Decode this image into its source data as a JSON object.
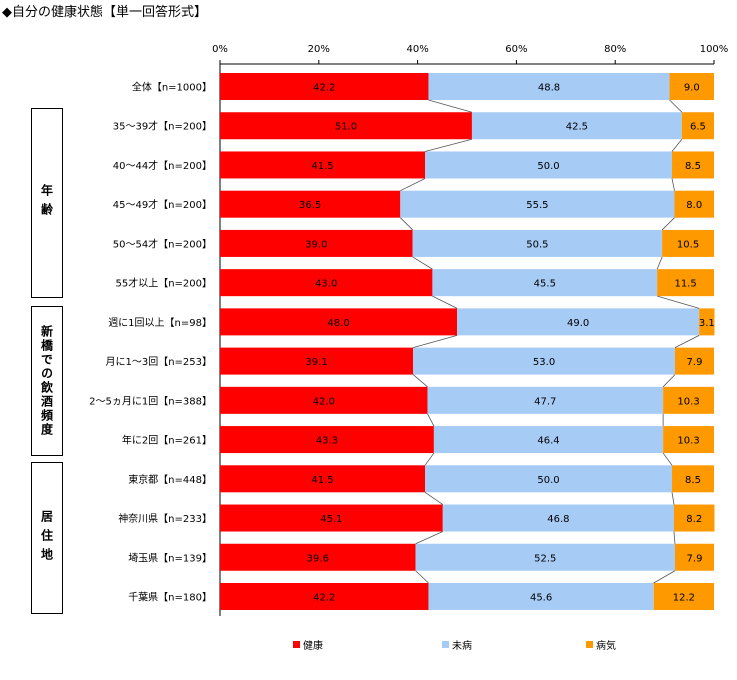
{
  "title": "◆自分の健康状態【単一回答形式】",
  "colors": {
    "health": "#ff0000",
    "mibyo": "#a6cbf5",
    "sick": "#ff9900",
    "axis": "#000000"
  },
  "groups": [
    {
      "label": "年齢",
      "rows": [
        1,
        5
      ]
    },
    {
      "label": "新橋での飲酒頻度",
      "rows": [
        6,
        9
      ]
    },
    {
      "label": "居住地",
      "rows": [
        10,
        13
      ]
    }
  ],
  "chart_data": {
    "type": "bar",
    "orientation": "horizontal-stacked-100",
    "xlim": [
      0,
      100
    ],
    "xticks": [
      "0%",
      "20%",
      "40%",
      "60%",
      "80%",
      "100%"
    ],
    "categories": [
      "全体【n=1000】",
      "35～39才【n=200】",
      "40～44才【n=200】",
      "45～49才【n=200】",
      "50～54才【n=200】",
      "55才以上【n=200】",
      "週に1回以上【n=98】",
      "月に1～3回【n=253】",
      "2～5ヵ月に1回【n=388】",
      "年に2回【n=261】",
      "東京都【n=448】",
      "神奈川県【n=233】",
      "埼玉県【n=139】",
      "千葉県【n=180】"
    ],
    "series": [
      {
        "name": "健康",
        "values": [
          42.2,
          51.0,
          41.5,
          36.5,
          39.0,
          43.0,
          48.0,
          39.1,
          42.0,
          43.3,
          41.5,
          45.1,
          39.6,
          42.2
        ]
      },
      {
        "name": "未病",
        "values": [
          48.8,
          42.5,
          50.0,
          55.5,
          50.5,
          45.5,
          49.0,
          53.0,
          47.7,
          46.4,
          50.0,
          46.8,
          52.5,
          45.6
        ]
      },
      {
        "name": "病気",
        "values": [
          9.0,
          6.5,
          8.5,
          8.0,
          10.5,
          11.5,
          3.1,
          7.9,
          10.3,
          10.3,
          8.5,
          8.2,
          7.9,
          12.2
        ]
      }
    ],
    "labels": [
      [
        "42.2",
        "48.8",
        "9.0"
      ],
      [
        "51.0",
        "42.5",
        "6.5"
      ],
      [
        "41.5",
        "50.0",
        "8.5"
      ],
      [
        "36.5",
        "55.5",
        "8.0"
      ],
      [
        "39.0",
        "50.5",
        "10.5"
      ],
      [
        "43.0",
        "45.5",
        "11.5"
      ],
      [
        "48.0",
        "49.0",
        "3.1"
      ],
      [
        "39.1",
        "53.0",
        "7.9"
      ],
      [
        "42.0",
        "47.7",
        "10.3"
      ],
      [
        "43.3",
        "46.4",
        "10.3"
      ],
      [
        "41.5",
        "50.0",
        "8.5"
      ],
      [
        "45.1",
        "46.8",
        "8.2"
      ],
      [
        "39.6",
        "52.5",
        "7.9"
      ],
      [
        "42.2",
        "45.6",
        "12.2"
      ]
    ],
    "legend": [
      "健康",
      "未病",
      "病気"
    ],
    "legend_position": "bottom",
    "grid": false
  }
}
